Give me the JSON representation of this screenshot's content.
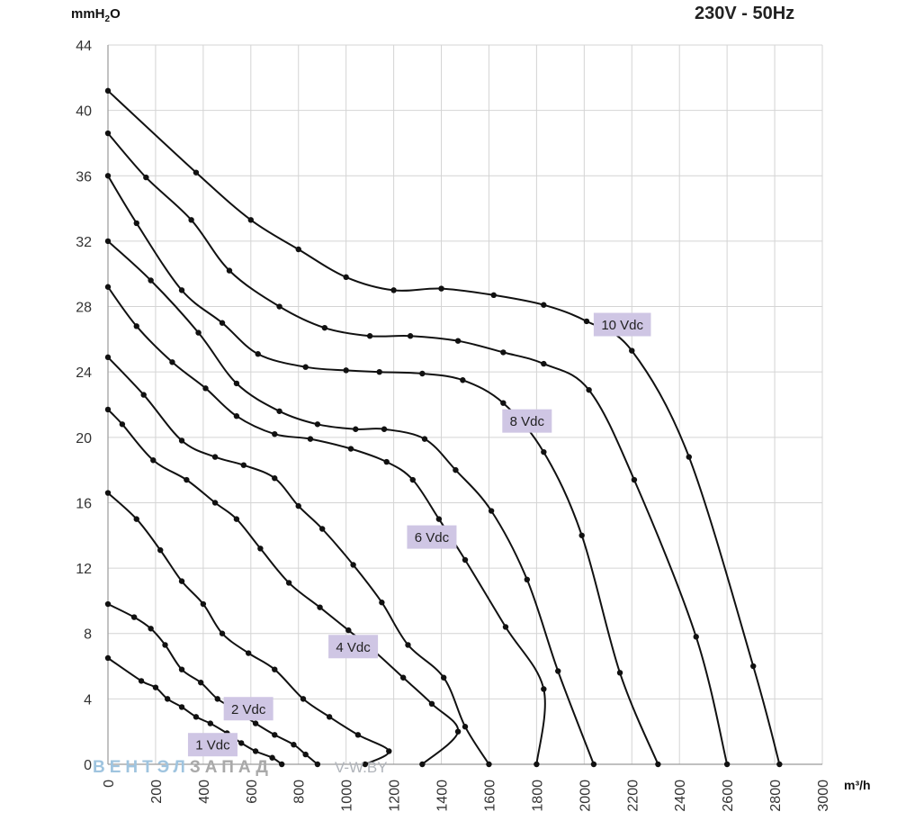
{
  "header": {
    "y_unit_main": "mmH",
    "y_unit_sub": "2",
    "y_unit_tail": "O",
    "supply": "230V - 50Hz",
    "x_unit": "m³/h"
  },
  "watermark": {
    "part1": "ВЕНТЭЛ",
    "part2": "ЗАПАД",
    "part3": "V-W.BY"
  },
  "colors": {
    "curve": "#111111",
    "grid": "#d4d4d4",
    "label_bg": "#cfc6e4",
    "axis_text": "#333333"
  },
  "chart_data": {
    "type": "line",
    "xlabel": "m³/h",
    "ylabel": "mmH2O",
    "xlim": [
      0,
      3000
    ],
    "ylim": [
      0,
      44
    ],
    "xticks": [
      0,
      200,
      400,
      600,
      800,
      1000,
      1200,
      1400,
      1600,
      1800,
      2000,
      2200,
      2400,
      2600,
      2800,
      3000
    ],
    "yticks": [
      0,
      4,
      8,
      12,
      16,
      20,
      24,
      28,
      32,
      36,
      40,
      44
    ],
    "grid": true,
    "series": [
      {
        "name": "10 Vdc",
        "label_at": [
          2160,
          26.9
        ],
        "points": [
          [
            0,
            41.2
          ],
          [
            370,
            36.2
          ],
          [
            600,
            33.3
          ],
          [
            800,
            31.5
          ],
          [
            1000,
            29.8
          ],
          [
            1200,
            29.0
          ],
          [
            1400,
            29.1
          ],
          [
            1620,
            28.7
          ],
          [
            1830,
            28.1
          ],
          [
            2010,
            27.1
          ],
          [
            2200,
            25.3
          ],
          [
            2440,
            18.8
          ],
          [
            2710,
            6.0
          ],
          [
            2820,
            0.0
          ]
        ]
      },
      {
        "name": "",
        "points": [
          [
            0,
            38.6
          ],
          [
            160,
            35.9
          ],
          [
            350,
            33.3
          ],
          [
            510,
            30.2
          ],
          [
            720,
            28.0
          ],
          [
            910,
            26.7
          ],
          [
            1100,
            26.2
          ],
          [
            1270,
            26.2
          ],
          [
            1470,
            25.9
          ],
          [
            1660,
            25.2
          ],
          [
            1830,
            24.5
          ],
          [
            2020,
            22.9
          ],
          [
            2210,
            17.4
          ],
          [
            2470,
            7.8
          ],
          [
            2600,
            0.0
          ]
        ]
      },
      {
        "name": "8 Vdc",
        "label_at": [
          1760,
          21.0
        ],
        "points": [
          [
            0,
            36.0
          ],
          [
            120,
            33.1
          ],
          [
            310,
            29.0
          ],
          [
            480,
            27.0
          ],
          [
            630,
            25.1
          ],
          [
            830,
            24.3
          ],
          [
            1000,
            24.1
          ],
          [
            1140,
            24.0
          ],
          [
            1320,
            23.9
          ],
          [
            1490,
            23.5
          ],
          [
            1660,
            22.1
          ],
          [
            1830,
            19.1
          ],
          [
            1990,
            14.0
          ],
          [
            2150,
            5.6
          ],
          [
            2310,
            0.0
          ]
        ]
      },
      {
        "name": "",
        "points": [
          [
            0,
            32.0
          ],
          [
            180,
            29.6
          ],
          [
            380,
            26.4
          ],
          [
            540,
            23.3
          ],
          [
            720,
            21.6
          ],
          [
            880,
            20.8
          ],
          [
            1040,
            20.5
          ],
          [
            1160,
            20.5
          ],
          [
            1330,
            19.9
          ],
          [
            1460,
            18.0
          ],
          [
            1610,
            15.5
          ],
          [
            1760,
            11.3
          ],
          [
            1890,
            5.7
          ],
          [
            2040,
            0.0
          ]
        ]
      },
      {
        "name": "6 Vdc",
        "label_at": [
          1360,
          13.9
        ],
        "points": [
          [
            0,
            29.2
          ],
          [
            120,
            26.8
          ],
          [
            270,
            24.6
          ],
          [
            410,
            23.0
          ],
          [
            540,
            21.3
          ],
          [
            700,
            20.2
          ],
          [
            850,
            19.9
          ],
          [
            1020,
            19.3
          ],
          [
            1170,
            18.5
          ],
          [
            1280,
            17.4
          ],
          [
            1390,
            15.0
          ],
          [
            1500,
            12.5
          ],
          [
            1670,
            8.4
          ],
          [
            1830,
            4.6
          ],
          [
            1800,
            0.0
          ]
        ]
      },
      {
        "name": "",
        "points": [
          [
            0,
            24.9
          ],
          [
            150,
            22.6
          ],
          [
            310,
            19.8
          ],
          [
            450,
            18.8
          ],
          [
            570,
            18.3
          ],
          [
            700,
            17.5
          ],
          [
            800,
            15.8
          ],
          [
            900,
            14.4
          ],
          [
            1030,
            12.2
          ],
          [
            1150,
            9.9
          ],
          [
            1260,
            7.3
          ],
          [
            1410,
            5.3
          ],
          [
            1500,
            2.3
          ],
          [
            1600,
            0.0
          ]
        ]
      },
      {
        "name": "4 Vdc",
        "label_at": [
          1030,
          7.2
        ],
        "points": [
          [
            0,
            21.7
          ],
          [
            60,
            20.8
          ],
          [
            190,
            18.6
          ],
          [
            330,
            17.4
          ],
          [
            450,
            16.0
          ],
          [
            540,
            15.0
          ],
          [
            640,
            13.2
          ],
          [
            760,
            11.1
          ],
          [
            890,
            9.6
          ],
          [
            1010,
            8.2
          ],
          [
            1120,
            6.9
          ],
          [
            1240,
            5.3
          ],
          [
            1360,
            3.7
          ],
          [
            1470,
            2.0
          ],
          [
            1320,
            0.0
          ]
        ]
      },
      {
        "name": "",
        "points": [
          [
            0,
            16.6
          ],
          [
            120,
            15.0
          ],
          [
            220,
            13.1
          ],
          [
            310,
            11.2
          ],
          [
            400,
            9.8
          ],
          [
            480,
            8.0
          ],
          [
            590,
            6.8
          ],
          [
            700,
            5.8
          ],
          [
            820,
            4.0
          ],
          [
            930,
            2.9
          ],
          [
            1050,
            1.8
          ],
          [
            1180,
            0.8
          ],
          [
            1080,
            0.0
          ]
        ]
      },
      {
        "name": "2 Vdc",
        "label_at": [
          590,
          3.4
        ],
        "points": [
          [
            0,
            9.8
          ],
          [
            110,
            9.0
          ],
          [
            180,
            8.3
          ],
          [
            240,
            7.3
          ],
          [
            310,
            5.8
          ],
          [
            390,
            5.0
          ],
          [
            460,
            4.0
          ],
          [
            540,
            3.3
          ],
          [
            620,
            2.5
          ],
          [
            700,
            1.8
          ],
          [
            780,
            1.2
          ],
          [
            830,
            0.6
          ],
          [
            880,
            0.0
          ]
        ]
      },
      {
        "name": "1 Vdc",
        "label_at": [
          440,
          1.2
        ],
        "points": [
          [
            0,
            6.5
          ],
          [
            140,
            5.1
          ],
          [
            200,
            4.7
          ],
          [
            250,
            4.0
          ],
          [
            310,
            3.5
          ],
          [
            370,
            2.9
          ],
          [
            430,
            2.5
          ],
          [
            500,
            1.9
          ],
          [
            560,
            1.3
          ],
          [
            620,
            0.8
          ],
          [
            690,
            0.4
          ],
          [
            730,
            0.0
          ]
        ]
      }
    ]
  }
}
